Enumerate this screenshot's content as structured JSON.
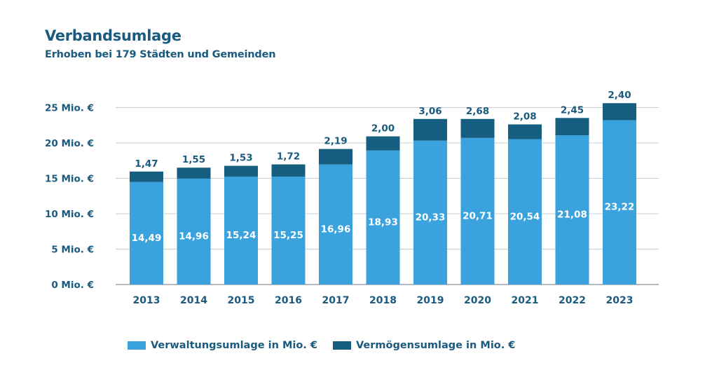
{
  "title": "Verbandsumlage",
  "subtitle": "Erhoben bei 179 Städten und Gemeinden",
  "colors": {
    "verwaltung": "#3aa3dd",
    "vermoegen": "#155e80",
    "text": "#1a5a7f",
    "grid": "#c8cdd2"
  },
  "legend": {
    "verwaltung_label": "Verwaltungsumlage in Mio. €",
    "vermoegen_label": "Vermögensumlage in Mio. €"
  },
  "chart_data": {
    "type": "bar",
    "stacked": true,
    "title": "Verbandsumlage",
    "subtitle": "Erhoben bei 179 Städten und Gemeinden",
    "categories": [
      "2013",
      "2014",
      "2015",
      "2016",
      "2017",
      "2018",
      "2019",
      "2020",
      "2021",
      "2022",
      "2023"
    ],
    "series": [
      {
        "name": "Verwaltungsumlage in Mio. €",
        "values": [
          14.49,
          14.96,
          15.24,
          15.25,
          16.96,
          18.93,
          20.33,
          20.71,
          20.54,
          21.08,
          23.22
        ],
        "labels": [
          "14,49",
          "14,96",
          "15,24",
          "15,25",
          "16,96",
          "18,93",
          "20,33",
          "20,71",
          "20,54",
          "21,08",
          "23,22"
        ]
      },
      {
        "name": "Vermögensumlage in Mio. €",
        "values": [
          1.47,
          1.55,
          1.53,
          1.72,
          2.19,
          2.0,
          3.06,
          2.68,
          2.08,
          2.45,
          2.4
        ],
        "labels": [
          "1,47",
          "1,55",
          "1,53",
          "1,72",
          "2,19",
          "2,00",
          "3,06",
          "2,68",
          "2,08",
          "2,45",
          "2,40"
        ]
      }
    ],
    "yticks": [
      0,
      5,
      10,
      15,
      20,
      25
    ],
    "ytick_labels": [
      "0 Mio. €",
      "5 Mio. €",
      "10 Mio. €",
      "15 Mio. €",
      "20 Mio. €",
      "25 Mio. €"
    ],
    "ylim": [
      0,
      25
    ],
    "grid": true,
    "legend_position": "bottom"
  }
}
